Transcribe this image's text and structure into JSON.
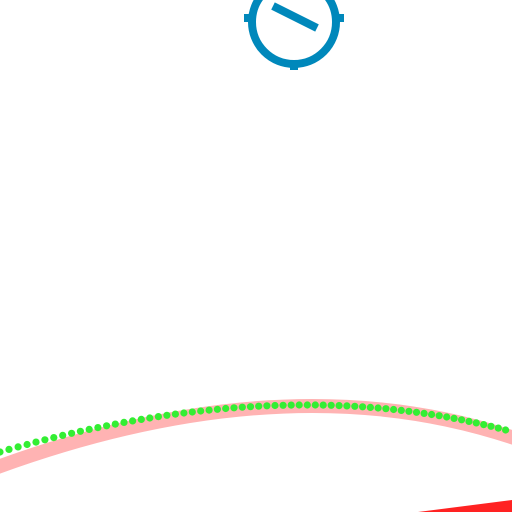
{
  "colors": {
    "background": "#ffffff",
    "cannon": "#0088bb",
    "trajectory_band": "#ffb3b3",
    "trajectory_dots": "#33ee33",
    "projectile_streak": "#ff2222"
  },
  "icons": {
    "cannon": "dial-aim-icon"
  }
}
